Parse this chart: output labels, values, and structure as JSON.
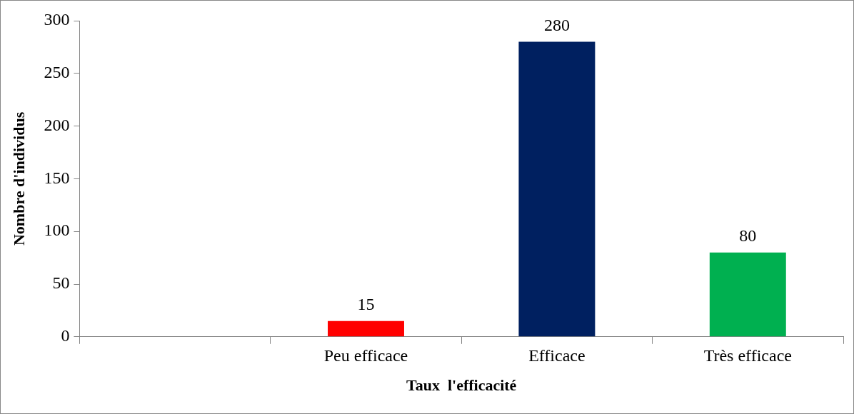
{
  "chart_data": {
    "type": "bar",
    "xlabel": "Taux  l'efficacité",
    "ylabel": "Nombre d'individus",
    "categories": [
      null,
      "Peu efficace",
      "Efficace",
      "Très efficace"
    ],
    "values": [
      null,
      15,
      280,
      80
    ],
    "colors": [
      "#7f7f7f",
      "#ff0000",
      "#002060",
      "#00b050"
    ],
    "ylim": [
      0,
      300
    ],
    "yticks": [
      0,
      50,
      100,
      150,
      200,
      250,
      300
    ],
    "grid": false,
    "legend": false,
    "data_labels": true
  }
}
